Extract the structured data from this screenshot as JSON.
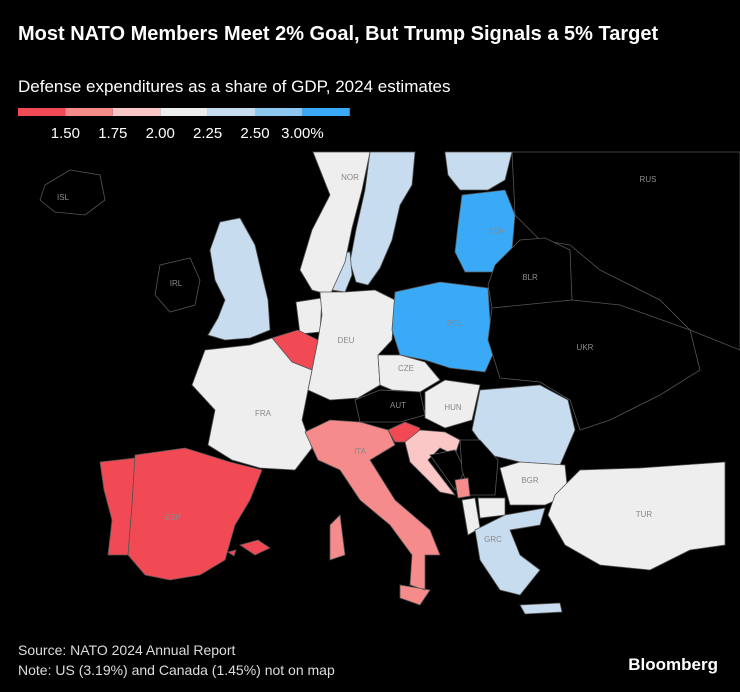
{
  "header": {
    "title": "Most NATO Members Meet 2% Goal, But Trump Signals a 5% Target",
    "subtitle": "Defense expenditures as a share of GDP, 2024 estimates"
  },
  "legend": {
    "colors": [
      "#f24a55",
      "#f58b8b",
      "#fbc6c6",
      "#eeeeee",
      "#c8dcf0",
      "#8ec6f2",
      "#3aa9f6"
    ],
    "ticks": [
      {
        "value": 1.5,
        "label": "1.50"
      },
      {
        "value": 1.75,
        "label": "1.75"
      },
      {
        "value": 2.0,
        "label": "2.00"
      },
      {
        "value": 2.25,
        "label": "2.25"
      },
      {
        "value": 2.5,
        "label": "2.50"
      },
      {
        "value": 3.0,
        "label": "3.00%"
      }
    ]
  },
  "map": {
    "countries": [
      {
        "label": "ISL",
        "color": "#000000"
      },
      {
        "label": "NOR",
        "color": "#eeeeee"
      },
      {
        "label": "IRL",
        "color": "#000000"
      },
      {
        "label": "LVA",
        "color": "#3aa9f6"
      },
      {
        "label": "RUS",
        "color": "#000000"
      },
      {
        "label": "BLR",
        "color": "#000000"
      },
      {
        "label": "DEU",
        "color": "#eeeeee"
      },
      {
        "label": "POL",
        "color": "#3aa9f6"
      },
      {
        "label": "UKR",
        "color": "#000000"
      },
      {
        "label": "CZE",
        "color": "#eeeeee"
      },
      {
        "label": "FRA",
        "color": "#eeeeee"
      },
      {
        "label": "AUT",
        "color": "#000000"
      },
      {
        "label": "HUN",
        "color": "#eeeeee"
      },
      {
        "label": "ITA",
        "color": "#f58b8b"
      },
      {
        "label": "ESP",
        "color": "#f24a55"
      },
      {
        "label": "BGR",
        "color": "#eeeeee"
      },
      {
        "label": "TUR",
        "color": "#eeeeee"
      },
      {
        "label": "GRC",
        "color": "#c8dcf0"
      }
    ]
  },
  "footer": {
    "source": "Source: NATO 2024 Annual Report",
    "note": "Note: US (3.19%) and Canada (1.45%) not on map",
    "brand": "Bloomberg"
  }
}
